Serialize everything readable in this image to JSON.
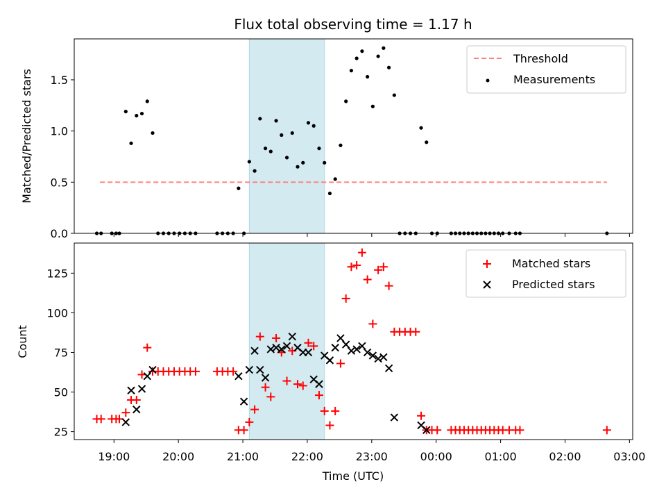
{
  "chart_data": [
    {
      "type": "scatter",
      "title": "Flux total observing time = 1.17 h",
      "xlabel": "",
      "ylabel": "Matched/Predicted stars",
      "ylim": [
        0,
        1.9
      ],
      "yticks": [
        0.0,
        0.5,
        1.0,
        1.5
      ],
      "ytick_labels": [
        "0.0",
        "0.5",
        "1.0",
        "1.5"
      ],
      "xlim": [
        "18:23",
        "03:03"
      ],
      "xticks": [
        "19:00",
        "20:00",
        "21:00",
        "22:00",
        "23:00",
        "00:00",
        "01:00",
        "02:00",
        "03:00"
      ],
      "shaded_interval": [
        "21:06",
        "22:16"
      ],
      "shade_color": "#d3eaf0",
      "legend_position": "upper right",
      "series": [
        {
          "name": "Threshold",
          "kind": "dashed-line",
          "color": "#ff7f7f",
          "x": [
            "18:47",
            "02:39"
          ],
          "y": [
            0.5,
            0.5
          ]
        },
        {
          "name": "Measurements",
          "kind": "dot",
          "color": "#000000",
          "x": [
            "18:44",
            "18:48",
            "18:58",
            "19:02",
            "19:05",
            "19:11",
            "19:16",
            "19:21",
            "19:26",
            "19:31",
            "19:36",
            "19:41",
            "19:46",
            "19:51",
            "19:56",
            "20:01",
            "20:06",
            "20:11",
            "20:16",
            "20:36",
            "20:41",
            "20:46",
            "20:51",
            "20:56",
            "21:01",
            "21:06",
            "21:11",
            "21:16",
            "21:21",
            "21:26",
            "21:31",
            "21:36",
            "21:41",
            "21:46",
            "21:51",
            "21:56",
            "22:01",
            "22:06",
            "22:11",
            "22:16",
            "22:21",
            "22:26",
            "22:31",
            "22:36",
            "22:41",
            "22:46",
            "22:51",
            "22:56",
            "23:01",
            "23:06",
            "23:11",
            "23:16",
            "23:21",
            "23:26",
            "23:31",
            "23:36",
            "23:41",
            "23:46",
            "23:51",
            "23:56",
            "00:01",
            "00:14",
            "00:18",
            "00:22",
            "00:26",
            "00:30",
            "00:34",
            "00:38",
            "00:42",
            "00:46",
            "00:50",
            "00:54",
            "00:58",
            "01:02",
            "01:08",
            "01:14",
            "01:18",
            "02:39"
          ],
          "y": [
            0,
            0,
            0,
            0,
            0,
            1.19,
            0.88,
            1.15,
            1.17,
            1.29,
            0.98,
            0,
            0,
            0,
            0,
            0,
            0,
            0,
            0,
            0,
            0,
            0,
            0,
            0.44,
            0,
            0.7,
            0.61,
            1.12,
            0.83,
            0.8,
            1.1,
            0.96,
            0.74,
            0.98,
            0.65,
            0.69,
            1.08,
            1.05,
            0.83,
            0.69,
            0.39,
            0.53,
            0.86,
            1.29,
            1.59,
            1.71,
            1.78,
            1.53,
            1.24,
            1.73,
            1.81,
            1.62,
            1.35,
            0,
            0,
            0,
            0,
            1.03,
            0.89,
            0,
            0,
            0,
            0,
            0,
            0,
            0,
            0,
            0,
            0,
            0,
            0,
            0,
            0,
            0,
            0,
            0,
            0,
            0
          ]
        }
      ]
    },
    {
      "type": "scatter",
      "title": "",
      "xlabel": "Time (UTC)",
      "ylabel": "Count",
      "ylim": [
        20,
        144
      ],
      "yticks": [
        25,
        50,
        75,
        100,
        125
      ],
      "ytick_labels": [
        "25",
        "50",
        "75",
        "100",
        "125"
      ],
      "xlim": [
        "18:23",
        "03:03"
      ],
      "xticks": [
        "19:00",
        "20:00",
        "21:00",
        "22:00",
        "23:00",
        "00:00",
        "01:00",
        "02:00",
        "03:00"
      ],
      "xtick_labels": [
        "19:00",
        "20:00",
        "21:00",
        "22:00",
        "23:00",
        "00:00",
        "01:00",
        "02:00",
        "03:00"
      ],
      "shaded_interval": [
        "21:06",
        "22:16"
      ],
      "shade_color": "#d3eaf0",
      "legend_position": "upper right",
      "series": [
        {
          "name": "Matched stars",
          "kind": "plus",
          "color": "#ff0000",
          "x": [
            "18:44",
            "18:48",
            "18:58",
            "19:02",
            "19:05",
            "19:11",
            "19:16",
            "19:21",
            "19:26",
            "19:31",
            "19:36",
            "19:41",
            "19:46",
            "19:51",
            "19:56",
            "20:01",
            "20:06",
            "20:11",
            "20:16",
            "20:36",
            "20:41",
            "20:46",
            "20:51",
            "20:56",
            "21:01",
            "21:06",
            "21:11",
            "21:16",
            "21:21",
            "21:26",
            "21:31",
            "21:36",
            "21:41",
            "21:46",
            "21:51",
            "21:56",
            "22:01",
            "22:06",
            "22:11",
            "22:16",
            "22:21",
            "22:26",
            "22:31",
            "22:36",
            "22:41",
            "22:46",
            "22:51",
            "22:56",
            "23:01",
            "23:06",
            "23:11",
            "23:16",
            "23:21",
            "23:26",
            "23:31",
            "23:36",
            "23:41",
            "23:46",
            "23:51",
            "23:56",
            "00:01",
            "00:14",
            "00:18",
            "00:22",
            "00:26",
            "00:30",
            "00:34",
            "00:38",
            "00:42",
            "00:46",
            "00:50",
            "00:54",
            "00:58",
            "01:02",
            "01:08",
            "01:14",
            "01:18",
            "02:39"
          ],
          "y": [
            33,
            33,
            33,
            33,
            33,
            37,
            45,
            45,
            61,
            78,
            63,
            63,
            63,
            63,
            63,
            63,
            63,
            63,
            63,
            63,
            63,
            63,
            63,
            26,
            26,
            31,
            39,
            85,
            53,
            47,
            84,
            75,
            57,
            76,
            55,
            54,
            81,
            79,
            48,
            38,
            29,
            38,
            68,
            109,
            129,
            130,
            138,
            121,
            93,
            127,
            129,
            117,
            88,
            88,
            88,
            88,
            88,
            35,
            26,
            26,
            26,
            26,
            26,
            26,
            26,
            26,
            26,
            26,
            26,
            26,
            26,
            26,
            26,
            26,
            26,
            26,
            26,
            26
          ]
        },
        {
          "name": "Predicted stars",
          "kind": "cross",
          "color": "#000000",
          "x": [
            "19:11",
            "19:16",
            "19:21",
            "19:26",
            "19:31",
            "19:36",
            "20:56",
            "21:01",
            "21:06",
            "21:11",
            "21:16",
            "21:21",
            "21:26",
            "21:31",
            "21:36",
            "21:41",
            "21:46",
            "21:51",
            "21:56",
            "22:01",
            "22:06",
            "22:11",
            "22:16",
            "22:21",
            "22:26",
            "22:31",
            "22:36",
            "22:41",
            "22:46",
            "22:51",
            "22:56",
            "23:01",
            "23:06",
            "23:11",
            "23:16",
            "23:21",
            "23:46",
            "23:51"
          ],
          "y": [
            31,
            51,
            39,
            52,
            60,
            64,
            60,
            44,
            64,
            76,
            64,
            59,
            77,
            78,
            77,
            79,
            85,
            78,
            75,
            75,
            58,
            55,
            73,
            70,
            78,
            84,
            80,
            76,
            77,
            79,
            75,
            73,
            71,
            72,
            65,
            34,
            29,
            26
          ]
        }
      ]
    }
  ]
}
